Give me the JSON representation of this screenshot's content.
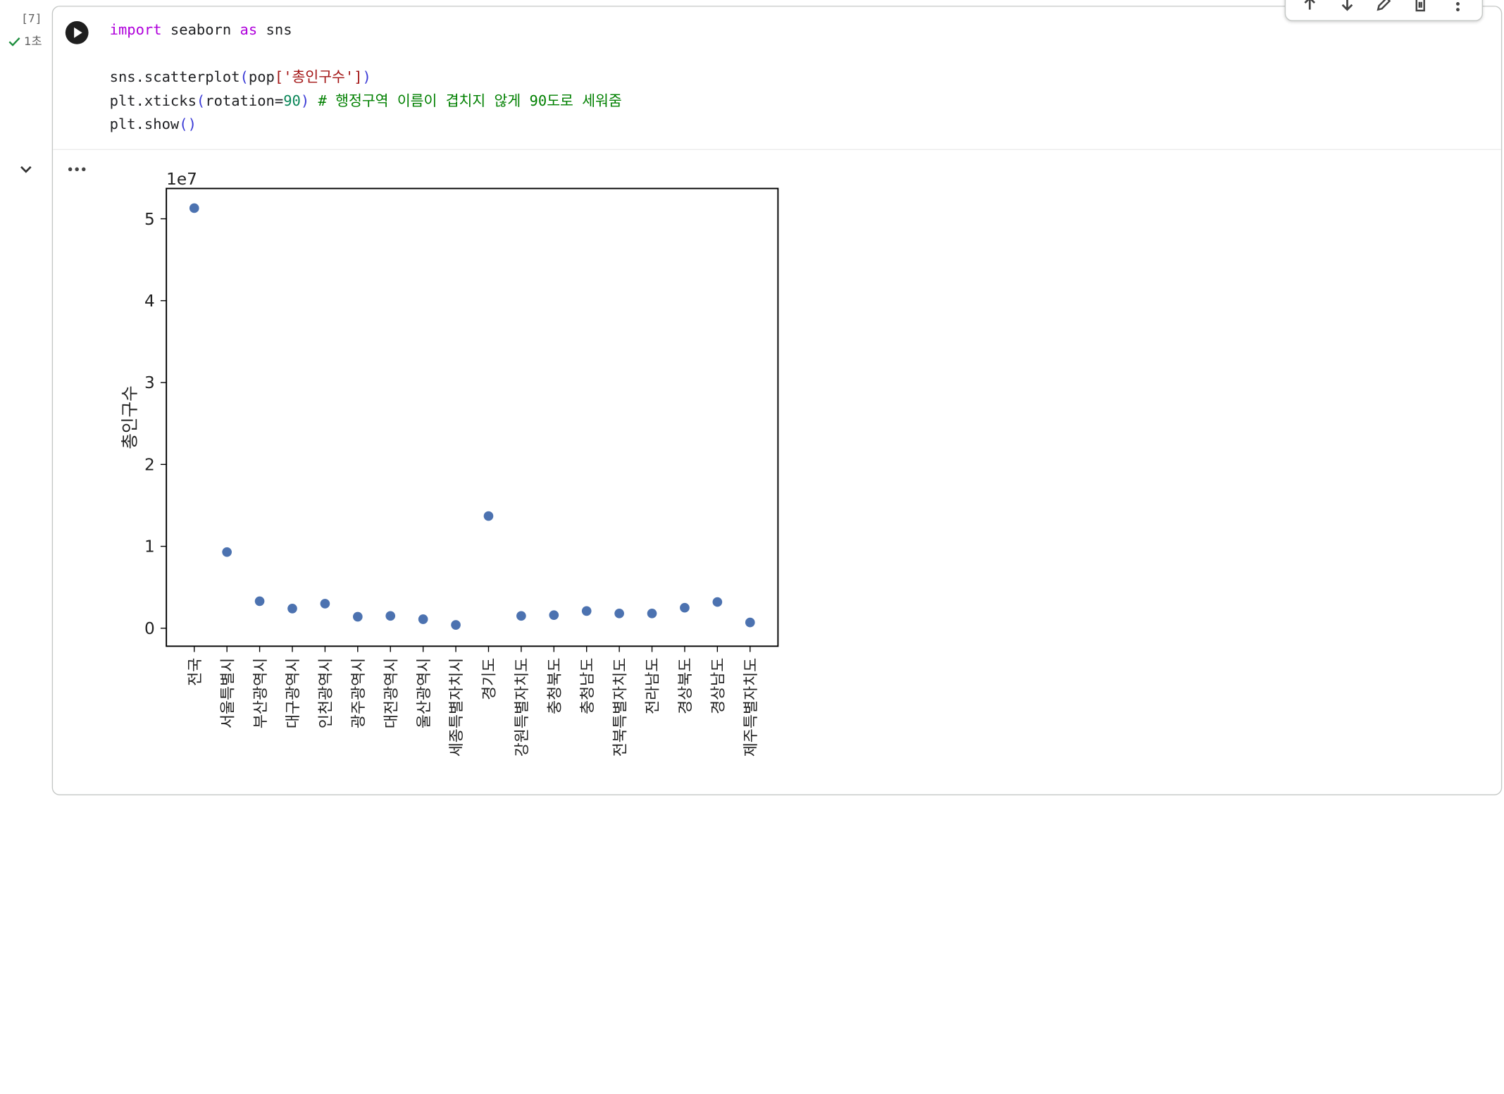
{
  "cell": {
    "execution_count": "[7]",
    "status_text": "1초",
    "code_lines": [
      [
        {
          "t": "import",
          "c": "kw"
        },
        {
          "t": " seaborn ",
          "c": ""
        },
        {
          "t": "as",
          "c": "kw"
        },
        {
          "t": " sns",
          "c": ""
        }
      ],
      [],
      [
        {
          "t": "sns.scatterplot",
          "c": ""
        },
        {
          "t": "(",
          "c": "paren"
        },
        {
          "t": "pop",
          "c": ""
        },
        {
          "t": "[",
          "c": "str"
        },
        {
          "t": "'총인구수'",
          "c": "str"
        },
        {
          "t": "]",
          "c": "str"
        },
        {
          "t": ")",
          "c": "paren"
        }
      ],
      [
        {
          "t": "plt.xticks",
          "c": ""
        },
        {
          "t": "(",
          "c": "paren"
        },
        {
          "t": "rotation=",
          "c": ""
        },
        {
          "t": "90",
          "c": "num"
        },
        {
          "t": ")",
          "c": "paren"
        },
        {
          "t": " ",
          "c": ""
        },
        {
          "t": "# 행정구역 이름이 겹치지 않게 90도로 세워줌",
          "c": "cmt"
        }
      ],
      [
        {
          "t": "plt.show",
          "c": ""
        },
        {
          "t": "()",
          "c": "paren"
        }
      ]
    ]
  },
  "toolbar": {
    "buttons": [
      "move-up-icon",
      "move-down-icon",
      "edit-icon",
      "delete-icon",
      "more-vert-icon"
    ]
  },
  "chart_data": {
    "type": "scatter",
    "ylabel": "총인구수",
    "y_offset_text": "1e7",
    "ylim": [
      -0.22,
      5.37
    ],
    "yticks": [
      0,
      1,
      2,
      3,
      4,
      5
    ],
    "grid": false,
    "color": "#4c72b0",
    "categories": [
      "전국",
      "서울특별시",
      "부산광역시",
      "대구광역시",
      "인천광역시",
      "광주광역시",
      "대전광역시",
      "울산광역시",
      "세종특별자치시",
      "경기도",
      "강원특별자치도",
      "충청북도",
      "충청남도",
      "전북특별자치도",
      "전라남도",
      "경상북도",
      "경상남도",
      "제주특별자치도"
    ],
    "values": [
      5.13,
      0.93,
      0.33,
      0.24,
      0.3,
      0.14,
      0.15,
      0.11,
      0.04,
      1.37,
      0.15,
      0.16,
      0.21,
      0.18,
      0.18,
      0.25,
      0.32,
      0.07
    ]
  }
}
